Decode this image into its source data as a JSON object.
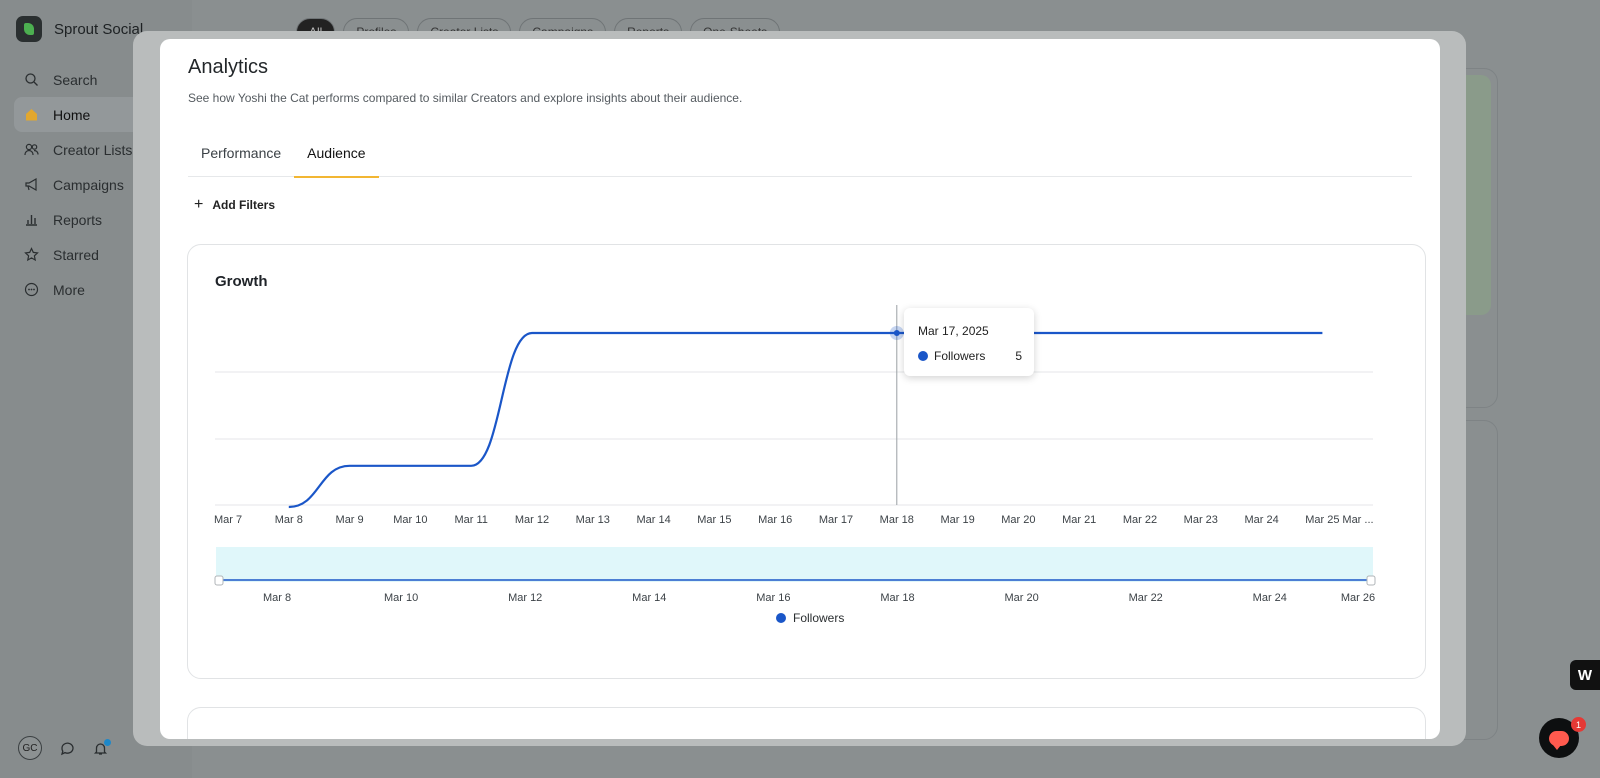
{
  "app": {
    "brand": "Sprout Social",
    "nav": [
      {
        "label": "Search",
        "icon": "search-icon"
      },
      {
        "label": "Home",
        "icon": "home-icon",
        "active": true
      },
      {
        "label": "Creator Lists",
        "icon": "users-icon"
      },
      {
        "label": "Campaigns",
        "icon": "megaphone-icon"
      },
      {
        "label": "Reports",
        "icon": "bar-chart-icon"
      },
      {
        "label": "Starred",
        "icon": "star-icon"
      },
      {
        "label": "More",
        "icon": "more-icon"
      }
    ],
    "avatar_initials": "GC",
    "chips": [
      "All",
      "Profiles",
      "Creator Lists",
      "Campaigns",
      "Reports",
      "One-Sheets"
    ]
  },
  "modal": {
    "title": "Analytics",
    "subtitle": "See how Yoshi the Cat performs compared to similar Creators and explore insights about their audience.",
    "tabs": [
      {
        "label": "Performance",
        "active": false
      },
      {
        "label": "Audience",
        "active": true
      }
    ],
    "add_filters_label": "Add Filters",
    "growth_card": {
      "title": "Growth"
    },
    "tooltip": {
      "date": "Mar 17, 2025",
      "series": "Followers",
      "value": "5"
    }
  },
  "chart_data": {
    "type": "line",
    "title": "Growth",
    "x_ticks": [
      "Mar 7",
      "Mar 8",
      "Mar 9",
      "Mar 10",
      "Mar 11",
      "Mar 12",
      "Mar 13",
      "Mar 14",
      "Mar 15",
      "Mar 16",
      "Mar 17",
      "Mar 18",
      "Mar 19",
      "Mar 20",
      "Mar 21",
      "Mar 22",
      "Mar 23",
      "Mar 24",
      "Mar 25",
      "Mar ..."
    ],
    "navigator_ticks": [
      "Mar 8",
      "Mar 10",
      "Mar 12",
      "Mar 14",
      "Mar 16",
      "Mar 18",
      "Mar 20",
      "Mar 22",
      "Mar 24",
      "Mar 26"
    ],
    "series": [
      {
        "name": "Followers",
        "color": "#1a56c8",
        "x": [
          "Mar 8",
          "Mar 9",
          "Mar 10",
          "Mar 11",
          "Mar 12",
          "Mar 13",
          "Mar 14",
          "Mar 15",
          "Mar 16",
          "Mar 17",
          "Mar 18",
          "Mar 19",
          "Mar 20",
          "Mar 21",
          "Mar 22",
          "Mar 23",
          "Mar 24",
          "Mar 25"
        ],
        "values": [
          0,
          1,
          1,
          1,
          5,
          5,
          5,
          5,
          5,
          5,
          5,
          5,
          5,
          5,
          5,
          5,
          5,
          5
        ]
      }
    ],
    "legend": "bottom-center",
    "grid": true,
    "accent_colors": {
      "line": "#1a56c8",
      "navigator_fill": "#e0f7fa",
      "tab_underline": "#f2b632"
    }
  },
  "widgets": {
    "w_label": "W",
    "chat_badge": "1"
  }
}
